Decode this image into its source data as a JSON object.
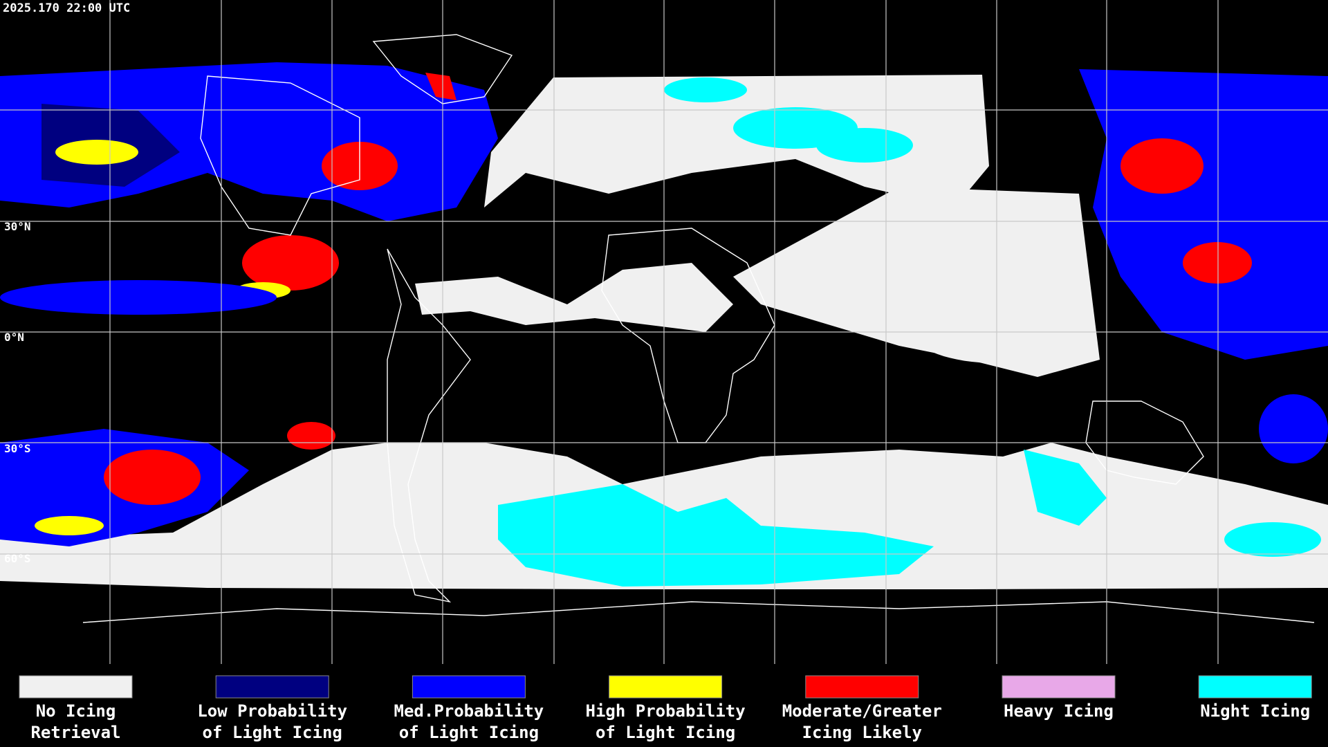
{
  "header": {
    "timestamp": "2025.170 22:00 UTC"
  },
  "map": {
    "latitude_labels": [
      "30°N",
      "0°N",
      "30°S",
      "60°S"
    ]
  },
  "legend": [
    {
      "lines": [
        "No Icing",
        "Retrieval"
      ],
      "color": "#f0f0f0"
    },
    {
      "lines": [
        "Low Probability",
        "of Light Icing"
      ],
      "color": "#000080"
    },
    {
      "lines": [
        "Med.Probability",
        "of Light Icing"
      ],
      "color": "#0000ff"
    },
    {
      "lines": [
        "High Probability",
        "of Light Icing"
      ],
      "color": "#ffff00"
    },
    {
      "lines": [
        "Moderate/Greater",
        "Icing Likely"
      ],
      "color": "#ff0000"
    },
    {
      "lines": [
        "Heavy Icing"
      ],
      "color": "#e8a8e8"
    },
    {
      "lines": [
        "Night Icing"
      ],
      "color": "#00ffff"
    }
  ]
}
